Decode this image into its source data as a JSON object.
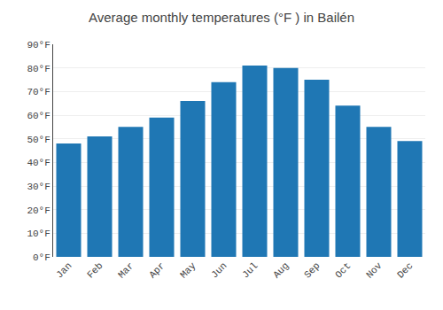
{
  "chart_data": {
    "type": "bar",
    "title": "Average monthly temperatures (°F ) in Bailén",
    "categories": [
      "Jan",
      "Feb",
      "Mar",
      "Apr",
      "May",
      "Jun",
      "Jul",
      "Aug",
      "Sep",
      "Oct",
      "Nov",
      "Dec"
    ],
    "values": [
      48,
      51,
      55,
      59,
      66,
      74,
      81,
      80,
      75,
      64,
      55,
      49
    ],
    "ylim": [
      0,
      90
    ],
    "yticks": [
      {
        "value": 0,
        "label": "0°F"
      },
      {
        "value": 10,
        "label": "10°F"
      },
      {
        "value": 20,
        "label": "20°F"
      },
      {
        "value": 30,
        "label": "30°F"
      },
      {
        "value": 40,
        "label": "40°F"
      },
      {
        "value": 50,
        "label": "50°F"
      },
      {
        "value": 60,
        "label": "60°F"
      },
      {
        "value": 70,
        "label": "70°F"
      },
      {
        "value": 80,
        "label": "80°F"
      },
      {
        "value": 90,
        "label": "90°F"
      }
    ],
    "grid": true
  }
}
